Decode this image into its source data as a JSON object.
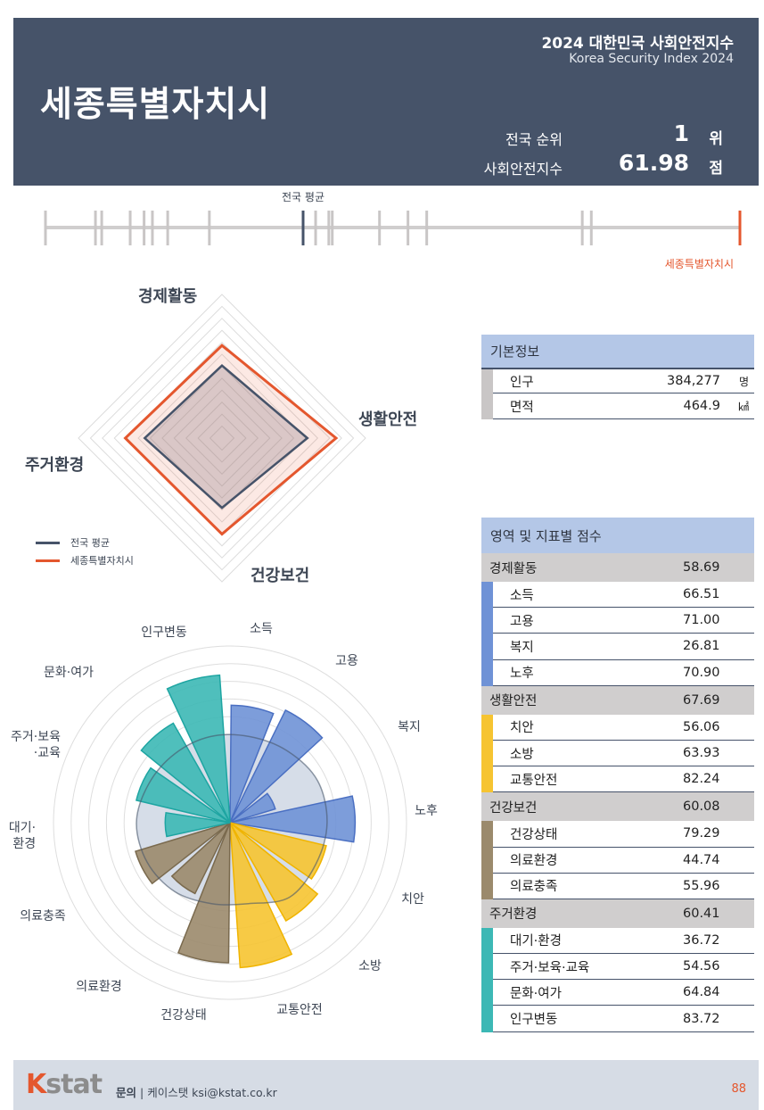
{
  "header": {
    "region": "세종특별자치시",
    "index_title": "2024 대한민국 사회안전지수",
    "index_subtitle": "Korea Security Index 2024",
    "rank_label": "전국 순위",
    "rank_value": "1",
    "rank_unit": "위",
    "score_label": "사회안전지수",
    "score_value": "61.98",
    "score_unit": "점"
  },
  "rank_strip": {
    "avg_label": "전국 평균",
    "self_label": "세종특별자치시",
    "avg_position": 0.371,
    "self_position": 1.0,
    "other_positions": [
      0,
      0.072,
      0.081,
      0.122,
      0.142,
      0.154,
      0.176,
      0.236,
      0.389,
      0.408,
      0.413,
      0.481,
      0.522,
      0.549,
      0.773,
      0.786
    ],
    "colors": {
      "avg": "#465369",
      "self": "#e4572e",
      "others": "#c9c6c6"
    }
  },
  "chart_data": [
    {
      "type": "radar",
      "axes": [
        "경제활동",
        "생활안전",
        "건강보건",
        "주거환경"
      ],
      "range": [
        20,
        80
      ],
      "series": [
        {
          "name": "전국 평균",
          "values": [
            50.3,
            55.7,
            49.1,
            52.3
          ],
          "color": "#465369"
        },
        {
          "name": "세종특별자치시",
          "values": [
            58.69,
            67.69,
            60.08,
            60.41
          ],
          "color": "#e4572e"
        }
      ],
      "legend": "bottom-left"
    },
    {
      "type": "polar-bar",
      "range": [
        0,
        100
      ],
      "categories": [
        "소득",
        "고용",
        "복지",
        "노후",
        "치안",
        "소방",
        "교통안전",
        "건강상태",
        "의료환경",
        "의료충족",
        "대기·환경",
        "주거·보육·교육",
        "문화·여가",
        "인구변동"
      ],
      "label_lines": [
        [
          "소득"
        ],
        [
          "고용"
        ],
        [
          "복지"
        ],
        [
          "노후"
        ],
        [
          "치안"
        ],
        [
          "소방"
        ],
        [
          "교통안전"
        ],
        [
          "건강상태"
        ],
        [
          "의료환경"
        ],
        [
          "의료충족"
        ],
        [
          "대기·",
          "환경"
        ],
        [
          "주거·보육",
          "·교육"
        ],
        [
          "문화·여가"
        ],
        [
          "인구변동"
        ]
      ],
      "values": [
        66.51,
        71.0,
        26.81,
        70.9,
        56.06,
        63.93,
        82.24,
        79.29,
        44.74,
        55.96,
        36.72,
        54.56,
        64.84,
        83.72
      ],
      "groups": [
        "경제활동",
        "경제활동",
        "경제활동",
        "경제활동",
        "생활안전",
        "생활안전",
        "생활안전",
        "건강보건",
        "건강보건",
        "건강보건",
        "주거환경",
        "주거환경",
        "주거환경",
        "주거환경"
      ],
      "national_average_approx": [
        50,
        52,
        55,
        55,
        54,
        54,
        47,
        47,
        50,
        52,
        53,
        51,
        50,
        50
      ]
    }
  ],
  "group_colors": {
    "경제활동": "#6f92d6",
    "생활안전": "#f6c431",
    "건강보건": "#9b8a6c",
    "주거환경": "#3cb8b5"
  },
  "basic_info": {
    "title": "기본정보",
    "rows": [
      {
        "label": "인구",
        "value": "384,277",
        "unit": "명"
      },
      {
        "label": "면적",
        "value": "464.9",
        "unit": "㎢"
      }
    ]
  },
  "scores": {
    "title": "영역 및 지표별 점수",
    "categories": [
      {
        "name": "경제활동",
        "score": "58.69",
        "items": [
          {
            "name": "소득",
            "score": "66.51"
          },
          {
            "name": "고용",
            "score": "71.00"
          },
          {
            "name": "복지",
            "score": "26.81"
          },
          {
            "name": "노후",
            "score": "70.90"
          }
        ]
      },
      {
        "name": "생활안전",
        "score": "67.69",
        "items": [
          {
            "name": "치안",
            "score": "56.06"
          },
          {
            "name": "소방",
            "score": "63.93"
          },
          {
            "name": "교통안전",
            "score": "82.24"
          }
        ]
      },
      {
        "name": "건강보건",
        "score": "60.08",
        "items": [
          {
            "name": "건강상태",
            "score": "79.29"
          },
          {
            "name": "의료환경",
            "score": "44.74"
          },
          {
            "name": "의료충족",
            "score": "55.96"
          }
        ]
      },
      {
        "name": "주거환경",
        "score": "60.41",
        "items": [
          {
            "name": "대기·환경",
            "score": "36.72"
          },
          {
            "name": "주거·보육·교육",
            "score": "54.56"
          },
          {
            "name": "문화·여가",
            "score": "64.84"
          },
          {
            "name": "인구변동",
            "score": "83.72"
          }
        ]
      }
    ]
  },
  "footer": {
    "logo": "Kstat",
    "contact_label": "문의",
    "contact_text": "케이스탯 ksi@kstat.co.kr",
    "page": "88"
  }
}
